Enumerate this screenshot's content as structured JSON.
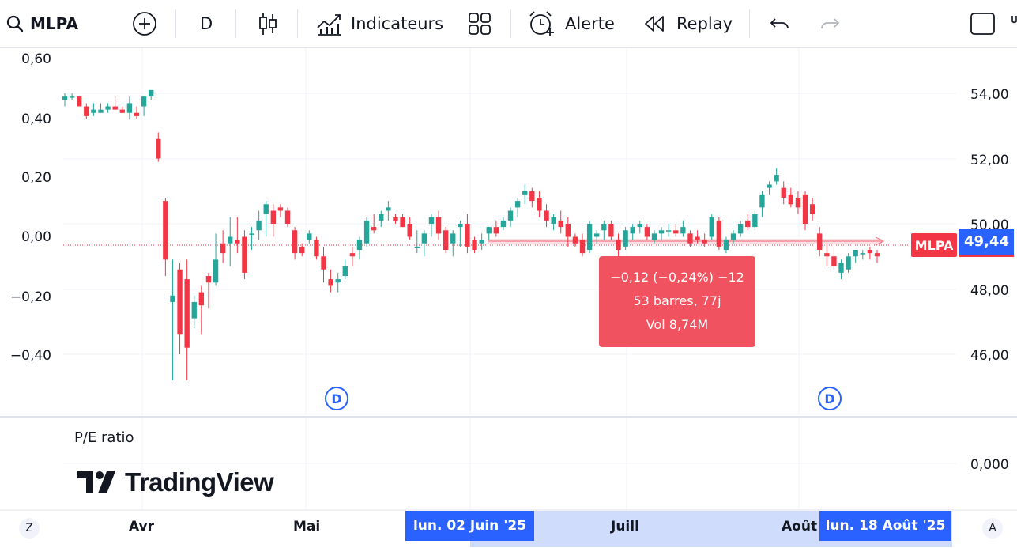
{
  "toolbar": {
    "symbol": "MLPA",
    "interval": "D",
    "indicators_label": "Indicateurs",
    "alert_label": "Alerte",
    "replay_label": "Replay"
  },
  "chart": {
    "left_axis_ticks": [
      "0,60",
      "0,40",
      "0,20",
      "0,00",
      "−0,20",
      "−0,40"
    ],
    "right_axis_ticks": [
      "54,00",
      "52,00",
      "50,00",
      "48,00",
      "46,00"
    ],
    "pe_axis_tick": "0,000",
    "time_labels": [
      "Avr",
      "Mai",
      "Juill",
      "Août"
    ],
    "range_start_badge": "lun. 02 Juin '25",
    "range_end_badge": "lun. 18 Août '25",
    "symbol_tag": "MLPA",
    "last_price": "49,44",
    "dividend_marker": "D",
    "pane_label": "P/E ratio",
    "logo_text": "TradingView",
    "corner_left": "Z",
    "corner_right": "A",
    "tooltip": {
      "line1": "−0,12 (−0,24%) −12",
      "line2": "53 barres, 77j",
      "line3": "Vol 8,74M"
    },
    "colors": {
      "up": "#26a69a",
      "down": "#f23645",
      "accent": "#2962ff"
    }
  },
  "chart_data": {
    "type": "candlestick",
    "ylim": [
      44.3,
      55.0
    ],
    "y_ticks": [
      46,
      48,
      50,
      52,
      54
    ],
    "candles": [
      [
        53.8,
        54.0,
        53.6,
        53.9
      ],
      [
        53.9,
        54.0,
        53.8,
        53.9
      ],
      [
        53.9,
        53.9,
        53.6,
        53.6
      ],
      [
        53.6,
        53.7,
        53.2,
        53.3
      ],
      [
        53.4,
        53.7,
        53.3,
        53.5
      ],
      [
        53.4,
        53.7,
        53.4,
        53.5
      ],
      [
        53.5,
        53.7,
        53.4,
        53.6
      ],
      [
        53.6,
        53.9,
        53.5,
        53.5
      ],
      [
        53.5,
        53.6,
        53.4,
        53.4
      ],
      [
        53.4,
        53.9,
        53.2,
        53.7
      ],
      [
        53.4,
        53.6,
        53.2,
        53.3
      ],
      [
        53.6,
        53.9,
        53.3,
        53.9
      ],
      [
        53.9,
        54.1,
        53.8,
        54.1
      ],
      [
        52.6,
        52.8,
        51.9,
        52.0
      ],
      [
        50.7,
        50.8,
        48.4,
        48.9
      ],
      [
        47.6,
        48.9,
        45.2,
        47.8
      ],
      [
        48.6,
        48.8,
        46.0,
        46.6
      ],
      [
        48.3,
        48.9,
        45.2,
        46.2
      ],
      [
        47.1,
        47.8,
        46.8,
        47.6
      ],
      [
        47.9,
        48.1,
        46.6,
        47.5
      ],
      [
        48.4,
        48.5,
        47.4,
        48.2
      ],
      [
        48.2,
        49.7,
        48.1,
        48.9
      ],
      [
        49.4,
        49.8,
        48.8,
        49.1
      ],
      [
        49.4,
        50.2,
        48.7,
        49.6
      ],
      [
        49.5,
        50.2,
        49.1,
        49.4
      ],
      [
        49.6,
        49.8,
        48.3,
        48.5
      ],
      [
        49.7,
        49.9,
        49.2,
        49.7
      ],
      [
        49.8,
        50.4,
        49.5,
        50.1
      ],
      [
        50.3,
        50.7,
        49.6,
        50.6
      ],
      [
        50.4,
        50.6,
        49.6,
        50.0
      ],
      [
        50.5,
        50.6,
        50.2,
        50.4
      ],
      [
        50.4,
        50.5,
        49.9,
        50.0
      ],
      [
        49.8,
        49.9,
        48.9,
        49.1
      ],
      [
        49.3,
        49.4,
        49.0,
        49.1
      ],
      [
        49.5,
        49.8,
        49.4,
        49.7
      ],
      [
        49.5,
        49.6,
        48.9,
        49.0
      ],
      [
        49.0,
        49.3,
        48.2,
        48.6
      ],
      [
        48.3,
        48.6,
        47.9,
        48.1
      ],
      [
        48.2,
        48.5,
        47.9,
        48.3
      ],
      [
        48.4,
        48.9,
        48.3,
        48.7
      ],
      [
        49.1,
        49.3,
        48.7,
        49.0
      ],
      [
        49.2,
        49.6,
        48.9,
        49.5
      ],
      [
        49.4,
        50.2,
        49.3,
        50.1
      ],
      [
        49.9,
        50.3,
        49.7,
        49.8
      ],
      [
        50.1,
        50.4,
        49.9,
        50.3
      ],
      [
        50.4,
        50.7,
        50.1,
        50.5
      ],
      [
        50.2,
        50.3,
        50.0,
        50.1
      ],
      [
        50.2,
        50.3,
        49.9,
        49.9
      ],
      [
        50.0,
        50.2,
        49.5,
        49.6
      ],
      [
        49.3,
        49.8,
        49.1,
        49.3
      ],
      [
        49.4,
        49.8,
        49.0,
        49.7
      ],
      [
        50.0,
        50.3,
        49.6,
        50.2
      ],
      [
        50.2,
        50.4,
        49.5,
        49.7
      ],
      [
        49.8,
        49.9,
        49.1,
        49.2
      ],
      [
        49.4,
        49.8,
        49.0,
        49.7
      ],
      [
        49.9,
        50.1,
        49.3,
        50.0
      ],
      [
        50.0,
        50.3,
        49.1,
        49.3
      ],
      [
        49.5,
        49.6,
        49.1,
        49.2
      ],
      [
        49.4,
        49.7,
        49.2,
        49.5
      ],
      [
        49.7,
        49.9,
        49.5,
        49.9
      ],
      [
        49.9,
        50.1,
        49.6,
        49.7
      ],
      [
        49.9,
        50.2,
        49.8,
        50.1
      ],
      [
        50.1,
        50.5,
        49.9,
        50.4
      ],
      [
        50.5,
        50.8,
        50.2,
        50.7
      ],
      [
        50.9,
        51.2,
        50.6,
        51.0
      ],
      [
        51.0,
        51.1,
        50.5,
        50.7
      ],
      [
        50.8,
        51.0,
        50.2,
        50.4
      ],
      [
        50.4,
        50.6,
        49.9,
        50.1
      ],
      [
        50.0,
        50.3,
        49.8,
        50.2
      ],
      [
        50.1,
        50.4,
        49.7,
        49.9
      ],
      [
        50.0,
        50.2,
        49.3,
        49.6
      ],
      [
        49.6,
        49.7,
        49.3,
        49.4
      ],
      [
        49.5,
        49.7,
        49.0,
        49.1
      ],
      [
        49.2,
        50.1,
        49.1,
        50.0
      ],
      [
        49.6,
        49.8,
        49.4,
        49.7
      ],
      [
        49.8,
        50.1,
        49.5,
        50.0
      ],
      [
        50.0,
        50.1,
        49.5,
        49.6
      ],
      [
        49.5,
        49.7,
        49.0,
        49.2
      ],
      [
        49.3,
        49.9,
        49.2,
        49.8
      ],
      [
        49.7,
        50.0,
        49.5,
        49.9
      ],
      [
        49.9,
        50.1,
        49.7,
        50.0
      ],
      [
        49.9,
        50.0,
        49.5,
        49.6
      ],
      [
        49.5,
        49.8,
        49.4,
        49.7
      ],
      [
        49.7,
        49.9,
        49.5,
        49.8
      ],
      [
        49.8,
        50.0,
        49.6,
        49.8
      ],
      [
        49.8,
        50.0,
        49.6,
        49.7
      ],
      [
        49.7,
        50.1,
        49.6,
        49.9
      ],
      [
        49.7,
        49.8,
        49.3,
        49.4
      ],
      [
        49.6,
        49.8,
        49.4,
        49.5
      ],
      [
        49.5,
        49.7,
        49.3,
        49.4
      ],
      [
        49.6,
        50.3,
        49.5,
        50.2
      ],
      [
        50.1,
        50.2,
        49.2,
        49.3
      ],
      [
        49.2,
        49.6,
        49.1,
        49.5
      ],
      [
        49.5,
        49.8,
        49.4,
        49.7
      ],
      [
        49.7,
        50.1,
        49.6,
        50.0
      ],
      [
        50.1,
        50.3,
        49.8,
        49.9
      ],
      [
        49.9,
        50.4,
        49.8,
        50.3
      ],
      [
        50.5,
        51.0,
        50.2,
        50.9
      ],
      [
        51.1,
        51.3,
        50.9,
        51.2
      ],
      [
        51.3,
        51.7,
        51.2,
        51.5
      ],
      [
        51.1,
        51.3,
        50.6,
        50.8
      ],
      [
        50.9,
        51.1,
        50.5,
        50.6
      ],
      [
        50.8,
        51.0,
        50.3,
        50.5
      ],
      [
        50.9,
        51.0,
        49.8,
        50.0
      ],
      [
        50.6,
        50.8,
        50.1,
        50.3
      ],
      [
        49.7,
        49.9,
        49.0,
        49.2
      ],
      [
        49.1,
        49.4,
        48.7,
        49.0
      ],
      [
        49.0,
        49.3,
        48.6,
        48.7
      ],
      [
        48.5,
        48.9,
        48.3,
        48.8
      ],
      [
        48.6,
        49.1,
        48.5,
        49.0
      ],
      [
        49.0,
        49.2,
        48.8,
        49.2
      ],
      [
        49.1,
        49.2,
        48.9,
        49.1
      ],
      [
        49.2,
        49.3,
        48.9,
        49.1
      ],
      [
        49.1,
        49.2,
        48.8,
        49.0
      ]
    ],
    "last_price": 49.44
  }
}
